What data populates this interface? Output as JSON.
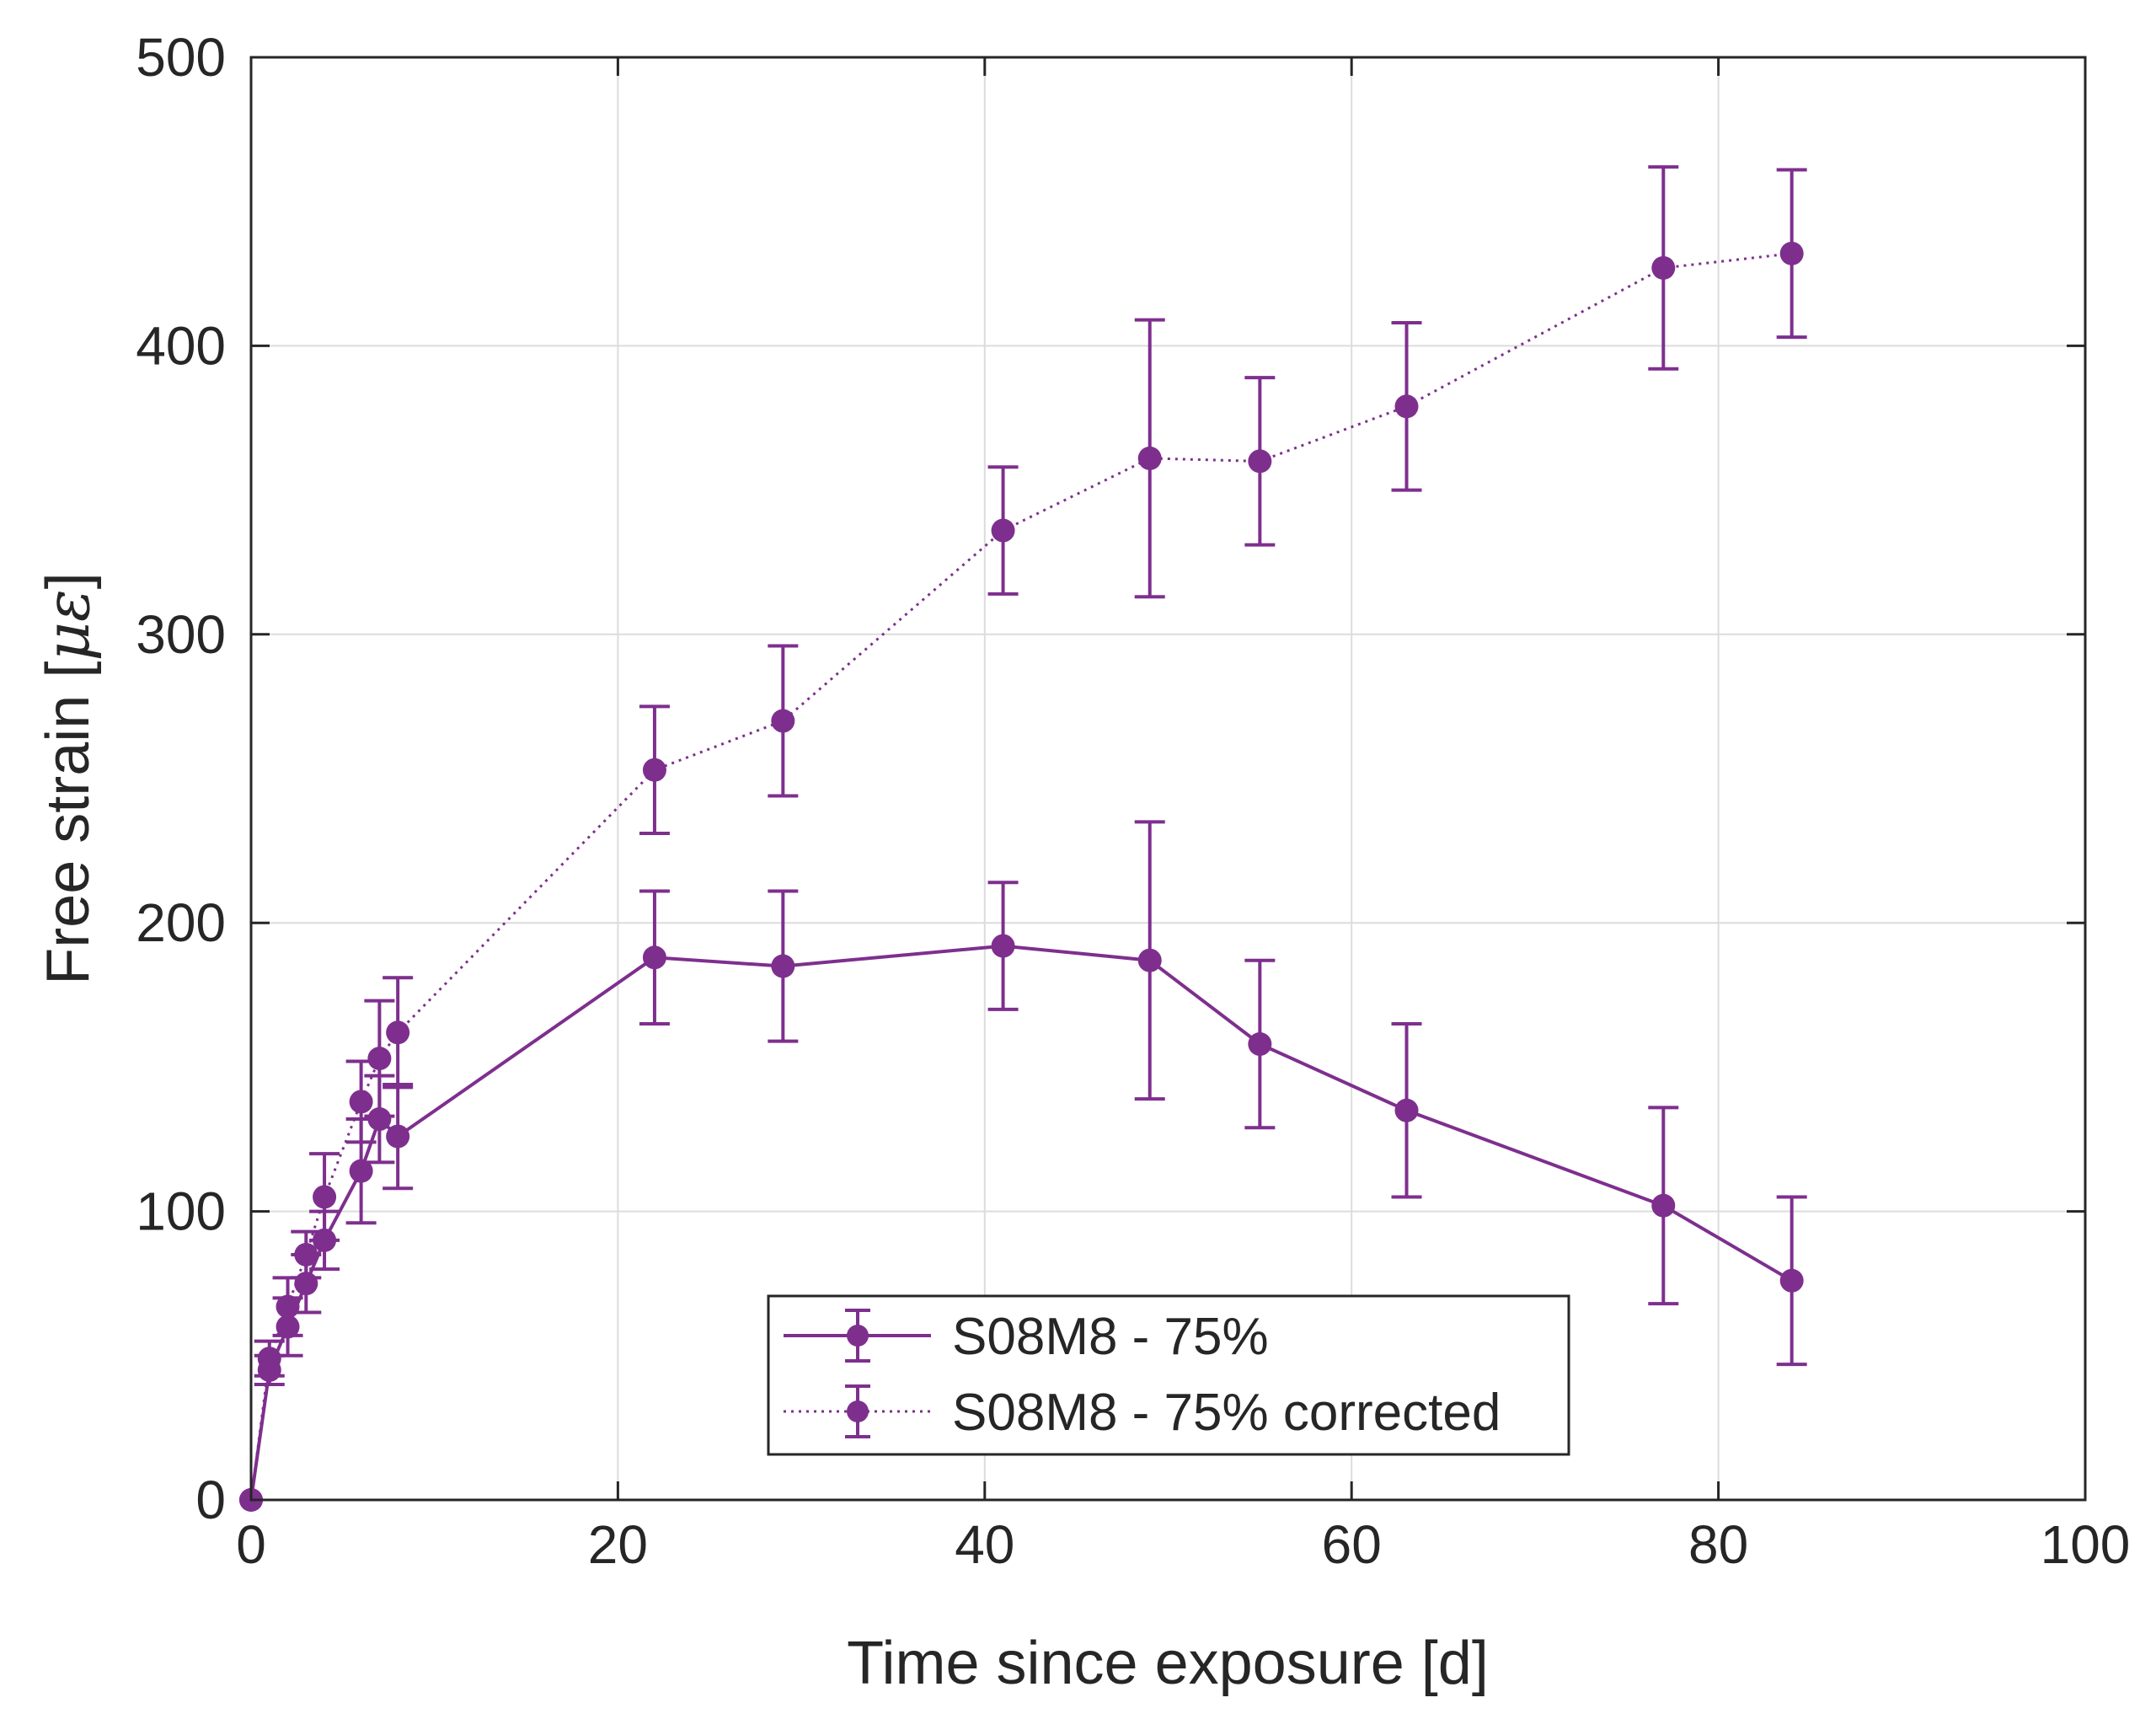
{
  "chart_data": {
    "type": "line",
    "xlabel": "Time since exposure [d]",
    "ylabel_text": "Free strain [",
    "ylabel_symbol": "με",
    "ylabel_close": "]",
    "xlim": [
      0,
      100
    ],
    "ylim": [
      0,
      500
    ],
    "xticks": [
      "0",
      "20",
      "40",
      "60",
      "80",
      "100"
    ],
    "yticks": [
      "0",
      "100",
      "200",
      "300",
      "400",
      "500"
    ],
    "grid": true,
    "legend_position": "bottom-center",
    "color": "#7E2F8E",
    "series": [
      {
        "name": "S08M8 - 75%",
        "style": "solid",
        "x": [
          0,
          1,
          2,
          3,
          4,
          6,
          7,
          8,
          22,
          29,
          41,
          49,
          55,
          63,
          77,
          84
        ],
        "y": [
          0,
          45,
          60,
          75,
          90,
          114,
          132,
          126,
          188,
          185,
          192,
          187,
          158,
          135,
          102,
          76
        ],
        "err": [
          0,
          5,
          10,
          10,
          10,
          18,
          15,
          18,
          23,
          26,
          22,
          48,
          29,
          30,
          34,
          29
        ]
      },
      {
        "name": "S08M8 - 75% corrected",
        "style": "dotted",
        "x": [
          0,
          1,
          2,
          3,
          4,
          6,
          7,
          8,
          22,
          29,
          41,
          49,
          55,
          63,
          77,
          84
        ],
        "y": [
          0,
          49,
          67,
          85,
          105,
          138,
          153,
          162,
          253,
          270,
          336,
          361,
          360,
          379,
          427,
          432
        ],
        "err": [
          0,
          6,
          10,
          8,
          15,
          14,
          20,
          19,
          22,
          26,
          22,
          48,
          29,
          29,
          35,
          29
        ]
      }
    ]
  }
}
